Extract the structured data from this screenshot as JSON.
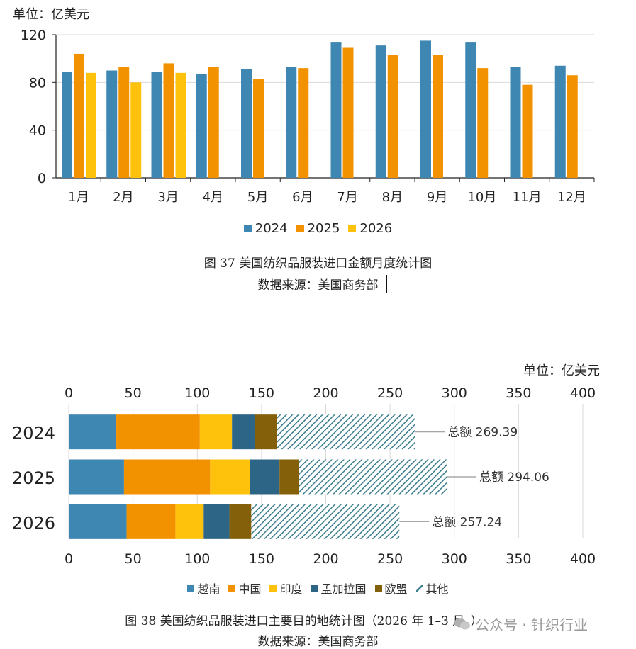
{
  "chart1": {
    "unit_label": "单位：亿美元",
    "caption_title": "图 37   美国纺织品服装进口金额月度统计图",
    "caption_source": "数据来源：美国商务部",
    "chart_data": {
      "type": "bar",
      "categories": [
        "1月",
        "2月",
        "3月",
        "4月",
        "5月",
        "6月",
        "7月",
        "8月",
        "9月",
        "10月",
        "11月",
        "12月"
      ],
      "series": [
        {
          "name": "2024",
          "color": "#3f87b3",
          "values": [
            89,
            90,
            89,
            87,
            91,
            93,
            114,
            111,
            115,
            114,
            93,
            94
          ]
        },
        {
          "name": "2025",
          "color": "#f39200",
          "values": [
            104,
            93,
            96,
            93,
            83,
            92,
            109,
            103,
            103,
            92,
            78,
            86
          ]
        },
        {
          "name": "2026",
          "color": "#fec20c",
          "values": [
            88,
            80,
            88,
            null,
            null,
            null,
            null,
            null,
            null,
            null,
            null,
            null
          ]
        }
      ],
      "yticks": [
        "0",
        "40",
        "80",
        "120"
      ],
      "ylim": [
        0,
        120
      ],
      "grid": true,
      "legend_position": "bottom"
    }
  },
  "chart2": {
    "unit_label": "单位：亿美元",
    "caption_title": "图 38   美国纺织品服装进口主要目的地统计图（2026 年 1–3 月，）",
    "caption_source": "数据来源：美国商务部",
    "chart_data": {
      "type": "bar",
      "orientation": "horizontal",
      "stacked": true,
      "categories": [
        "2024",
        "2025",
        "2026"
      ],
      "series": [
        {
          "name": "越南",
          "color": "#3f87b3",
          "values": [
            37,
            43,
            45
          ]
        },
        {
          "name": "中国",
          "color": "#f39200",
          "values": [
            65,
            67,
            38
          ]
        },
        {
          "name": "印度",
          "color": "#fec20c",
          "values": [
            25,
            31,
            22
          ]
        },
        {
          "name": "孟加拉国",
          "color": "#2d6587",
          "values": [
            18,
            23,
            20
          ]
        },
        {
          "name": "欧盟",
          "color": "#84600a",
          "values": [
            17,
            15,
            17
          ]
        },
        {
          "name": "其他",
          "color": "hatch",
          "values": [
            107.39,
            115.06,
            115.24
          ]
        }
      ],
      "totals": [
        "总额 269.39",
        "总额 294.06",
        "总额 257.24"
      ],
      "total_values": [
        269.39,
        294.06,
        257.24
      ],
      "xticks": [
        "0",
        "50",
        "100",
        "150",
        "200",
        "250",
        "300",
        "350",
        "400"
      ],
      "xlim": [
        0,
        400
      ],
      "grid": true,
      "legend_position": "bottom"
    }
  },
  "watermark": "公众号 · 针织行业"
}
